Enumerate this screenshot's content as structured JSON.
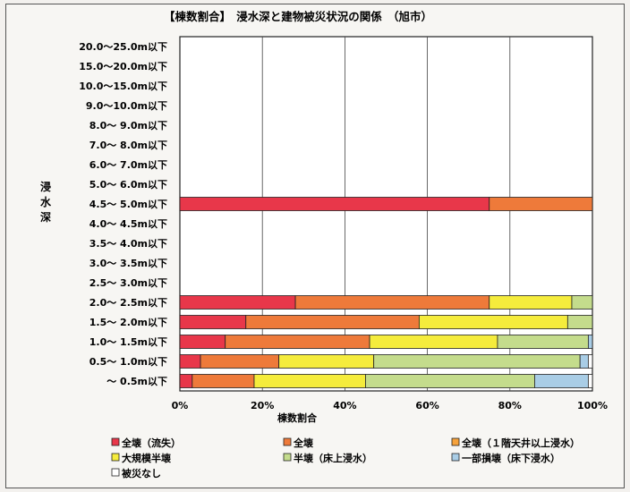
{
  "chart_data": {
    "type": "bar",
    "stacked": true,
    "orientation": "horizontal",
    "title": "【棟数割合】　浸水深と建物被災状況の関係　（旭市）",
    "xlabel": "棟数割合",
    "ylabel": "浸水深",
    "xlim": [
      0,
      100
    ],
    "xticks": [
      "0%",
      "20%",
      "40%",
      "60%",
      "80%",
      "100%"
    ],
    "grid": true,
    "legend_position": "bottom",
    "categories": [
      "20.0～25.0m以下",
      "15.0～20.0m以下",
      "10.0～15.0m以下",
      "9.0～10.0m以下",
      "8.0～ 9.0m以下",
      "7.0～ 8.0m以下",
      "6.0～ 7.0m以下",
      "5.0～ 6.0m以下",
      "4.5～ 5.0m以下",
      "4.0～ 4.5m以下",
      "3.5～ 4.0m以下",
      "3.0～ 3.5m以下",
      "2.5～ 3.0m以下",
      "2.0～ 2.5m以下",
      "1.5～ 2.0m以下",
      "1.0～ 1.5m以下",
      "0.5～ 1.0m以下",
      "～ 0.5m以下"
    ],
    "series": [
      {
        "name": "全壊（流失）",
        "color": "#e8374a",
        "values": [
          0,
          0,
          0,
          0,
          0,
          0,
          0,
          0,
          75,
          0,
          0,
          0,
          0,
          28,
          16,
          11,
          5,
          3
        ]
      },
      {
        "name": "全壊",
        "color": "#ee7a3a",
        "values": [
          0,
          0,
          0,
          0,
          0,
          0,
          0,
          0,
          25,
          0,
          0,
          0,
          0,
          47,
          42,
          35,
          19,
          15
        ]
      },
      {
        "name": "全壊（１階天井以上浸水）",
        "color": "#f6a23b",
        "values": [
          0,
          0,
          0,
          0,
          0,
          0,
          0,
          0,
          0,
          0,
          0,
          0,
          0,
          0,
          0,
          0,
          0,
          0
        ]
      },
      {
        "name": "大規模半壊",
        "color": "#f5ec3c",
        "values": [
          0,
          0,
          0,
          0,
          0,
          0,
          0,
          0,
          0,
          0,
          0,
          0,
          0,
          20,
          36,
          31,
          23,
          27
        ]
      },
      {
        "name": "半壊（床上浸水）",
        "color": "#c4dc8c",
        "values": [
          0,
          0,
          0,
          0,
          0,
          0,
          0,
          0,
          0,
          0,
          0,
          0,
          0,
          5,
          6,
          22,
          50,
          41
        ]
      },
      {
        "name": "一部損壊（床下浸水）",
        "color": "#a9cde6",
        "values": [
          0,
          0,
          0,
          0,
          0,
          0,
          0,
          0,
          0,
          0,
          0,
          0,
          0,
          0,
          0,
          1,
          2,
          13
        ]
      },
      {
        "name": "被災なし",
        "color": "#ffffff",
        "values": [
          0,
          0,
          0,
          0,
          0,
          0,
          0,
          0,
          0,
          0,
          0,
          0,
          0,
          0,
          0,
          0,
          1,
          1
        ]
      }
    ]
  }
}
